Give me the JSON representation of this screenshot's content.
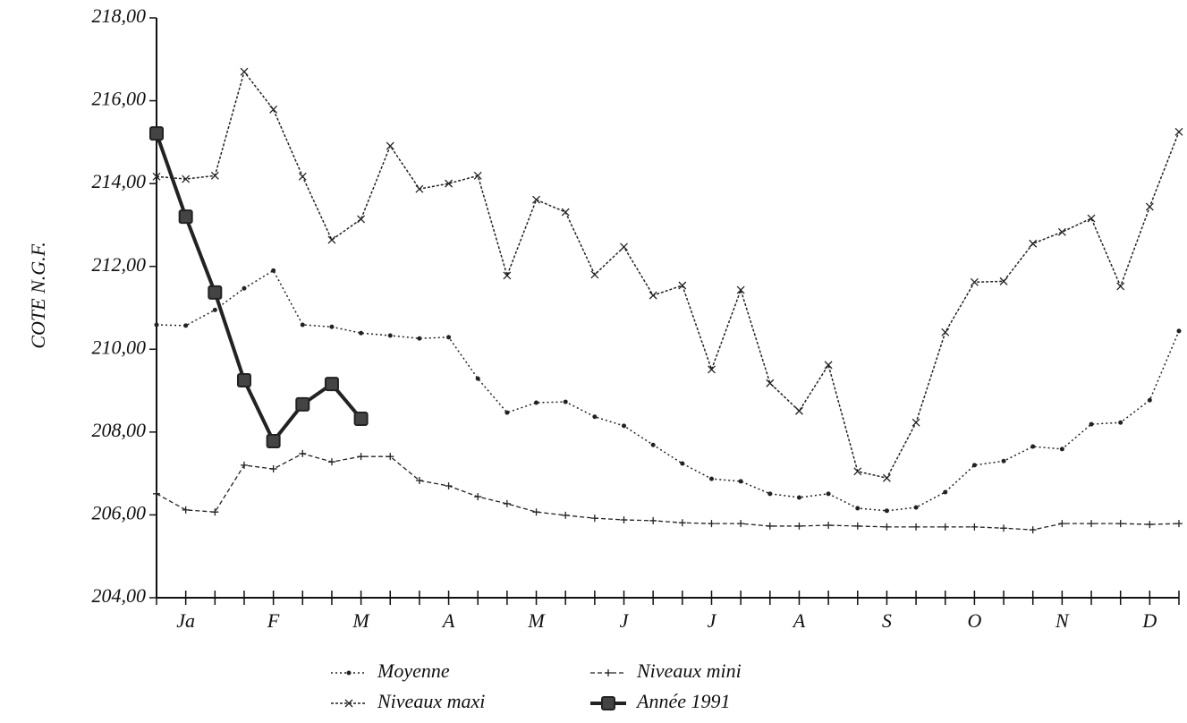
{
  "chart_data": {
    "type": "line",
    "y_label": "COTE N.G.F.",
    "categories": [
      null,
      "Ja",
      null,
      null,
      "F",
      null,
      null,
      "M",
      null,
      null,
      "A",
      null,
      null,
      "M",
      null,
      null,
      "J",
      null,
      null,
      "J",
      null,
      null,
      "A",
      null,
      null,
      "S",
      null,
      null,
      "O",
      null,
      null,
      "N",
      null,
      null,
      "D",
      null
    ],
    "ylim": [
      204,
      218
    ],
    "yticks": [
      {
        "value": 204,
        "label": "204,00"
      },
      {
        "value": 206,
        "label": "206,00"
      },
      {
        "value": 208,
        "label": "208,00"
      },
      {
        "value": 210,
        "label": "210,00"
      },
      {
        "value": 212,
        "label": "212,00"
      },
      {
        "value": 214,
        "label": "214,00"
      },
      {
        "value": 216,
        "label": "216,00"
      },
      {
        "value": 218,
        "label": "218,00"
      }
    ],
    "series": [
      {
        "name": "Moyenne",
        "color": "#222222",
        "values": [
          210.59,
          210.57,
          210.95,
          211.47,
          211.9,
          210.59,
          210.54,
          210.39,
          210.33,
          210.26,
          210.29,
          209.29,
          208.47,
          208.71,
          208.73,
          208.37,
          208.15,
          207.69,
          207.24,
          206.87,
          206.81,
          206.51,
          206.42,
          206.51,
          206.16,
          206.1,
          206.18,
          206.55,
          207.2,
          207.3,
          207.65,
          207.59,
          208.19,
          208.23,
          208.77,
          210.44
        ]
      },
      {
        "name": "Niveaux maxi",
        "color": "#222222",
        "values": [
          214.17,
          214.11,
          214.19,
          216.7,
          215.79,
          214.17,
          212.64,
          213.14,
          214.91,
          213.87,
          214.0,
          214.19,
          211.78,
          213.61,
          213.31,
          211.8,
          212.47,
          211.3,
          211.54,
          209.51,
          211.43,
          209.18,
          208.51,
          209.62,
          207.05,
          206.89,
          208.23,
          210.41,
          211.62,
          211.64,
          212.55,
          212.83,
          213.16,
          211.52,
          213.44,
          215.25
        ]
      },
      {
        "name": "Niveaux mini",
        "color": "#222222",
        "values": [
          206.51,
          206.12,
          206.07,
          207.2,
          207.11,
          207.48,
          207.28,
          207.41,
          207.41,
          206.83,
          206.7,
          206.44,
          206.27,
          206.07,
          205.99,
          205.92,
          205.88,
          205.86,
          205.81,
          205.79,
          205.79,
          205.73,
          205.73,
          205.75,
          205.73,
          205.71,
          205.71,
          205.71,
          205.71,
          205.68,
          205.64,
          205.79,
          205.79,
          205.79,
          205.77,
          205.79
        ]
      },
      {
        "name": "Année 1991",
        "color": "#222222",
        "values": [
          215.21,
          213.2,
          211.37,
          209.25,
          207.78,
          208.67,
          209.16,
          208.32,
          null,
          null,
          null,
          null,
          null,
          null,
          null,
          null,
          null,
          null,
          null,
          null,
          null,
          null,
          null,
          null,
          null,
          null,
          null,
          null,
          null,
          null,
          null,
          null,
          null,
          null,
          null,
          null
        ]
      }
    ]
  }
}
